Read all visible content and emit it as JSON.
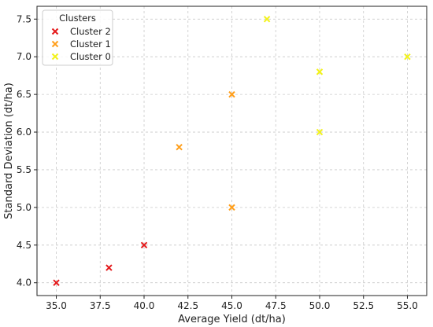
{
  "chart_data": {
    "type": "scatter",
    "title": "",
    "xlabel": "Average Yield (dt/ha)",
    "ylabel": "Standard Deviation (dt/ha)",
    "xlim": [
      33.9,
      56.1
    ],
    "ylim": [
      3.83,
      7.67
    ],
    "xticks": [
      35.0,
      37.5,
      40.0,
      42.5,
      45.0,
      47.5,
      50.0,
      52.5,
      55.0
    ],
    "xtick_labels": [
      "35.0",
      "37.5",
      "40.0",
      "42.5",
      "45.0",
      "47.5",
      "50.0",
      "52.5",
      "55.0"
    ],
    "yticks": [
      4.0,
      4.5,
      5.0,
      5.5,
      6.0,
      6.5,
      7.0,
      7.5
    ],
    "ytick_labels": [
      "4.0",
      "4.5",
      "5.0",
      "5.5",
      "6.0",
      "6.5",
      "7.0",
      "7.5"
    ],
    "grid": true,
    "marker": "x",
    "legend": {
      "title": "Clusters",
      "placement": "top-left"
    },
    "series": [
      {
        "name": "Cluster 2",
        "color": "#e41a1c",
        "points": [
          [
            35,
            4.0
          ],
          [
            38,
            4.2
          ],
          [
            40,
            4.5
          ]
        ]
      },
      {
        "name": "Cluster 1",
        "color": "#ff9f1c",
        "points": [
          [
            42,
            5.8
          ],
          [
            45,
            6.5
          ],
          [
            45,
            5.0
          ]
        ]
      },
      {
        "name": "Cluster 0",
        "color": "#f2f21a",
        "points": [
          [
            47,
            7.5
          ],
          [
            50,
            6.8
          ],
          [
            50,
            6.0
          ],
          [
            55,
            7.0
          ]
        ]
      }
    ]
  }
}
